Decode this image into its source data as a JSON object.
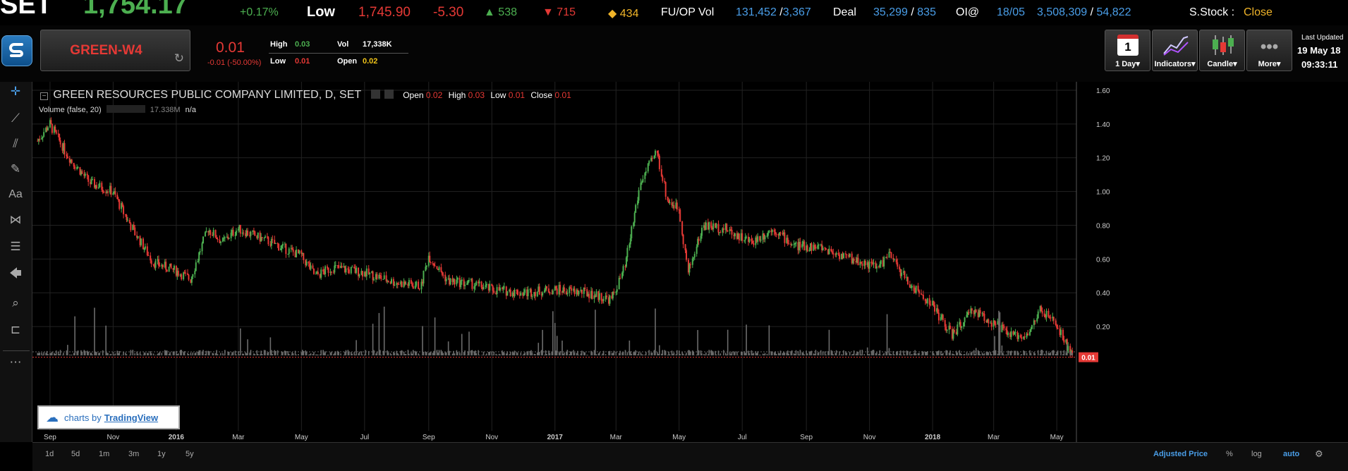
{
  "ticker": {
    "index_name": "SET",
    "index_value": "1,754.17",
    "change_pct": "+0.17%",
    "low_label": "Low",
    "low_value": "1,745.90",
    "low_change": "-5.30",
    "up_count": "538",
    "down_count": "715",
    "unch_count": "434",
    "fuop_label": "FU/OP Vol",
    "fuop_value_a": "131,452",
    "fuop_value_b": "3,367",
    "deal_label": "Deal",
    "deal_a": "35,299",
    "deal_b": "835",
    "oi_label": "OI@",
    "oi_date": "18/05",
    "oi_a": "3,508,309",
    "oi_b": "54,822",
    "sstock_label": "S.Stock :",
    "sstock_value": "Close"
  },
  "header": {
    "symbol": "GREEN-W4",
    "last_price": "0.01",
    "price_change": "-0.01 (-50.00%)",
    "high_label": "High",
    "high_value": "0.03",
    "low_label": "Low",
    "low_value": "0.01",
    "vol_label": "Vol",
    "vol_value": "17,338K",
    "open_label": "Open",
    "open_value": "0.02",
    "interval_icon_text": "1",
    "interval_label": "1 Day▾",
    "indicators_label": "Indicators▾",
    "candle_label": "Candle▾",
    "more_label": "More▾",
    "last_updated_label": "Last Updated",
    "last_updated_date": "19 May 18",
    "last_updated_time": "09:33:11"
  },
  "legend": {
    "title": "GREEN RESOURCES PUBLIC COMPANY LIMITED, D, SET",
    "open_label": "Open",
    "open_value": "0.02",
    "high_label": "High",
    "high_value": "0.03",
    "low_label": "Low",
    "low_value": "0.01",
    "close_label": "Close",
    "close_value": "0.01",
    "volume_label": "Volume (false, 20)",
    "volume_value": "17.338M",
    "volume_na": "n/a"
  },
  "footer": {
    "ranges": [
      "1d",
      "5d",
      "1m",
      "3m",
      "1y",
      "5y"
    ],
    "adjusted_label": "Adjusted Price",
    "pct_label": "%",
    "log_label": "log",
    "auto_label": "auto"
  },
  "watermark": {
    "prefix": "charts by",
    "brand": "TradingView"
  },
  "colors": {
    "up": "#4caf50",
    "down": "#e53935",
    "accent": "#2196f3",
    "volume": "#6b6b6b"
  },
  "chart_data": {
    "type": "candlestick",
    "y_ticks": [
      "1.60",
      "1.40",
      "1.20",
      "1.00",
      "0.80",
      "0.60",
      "0.40",
      "0.20"
    ],
    "x_ticks": [
      "Sep",
      "Nov",
      "2016",
      "Mar",
      "May",
      "Jul",
      "Sep",
      "Nov",
      "2017",
      "Mar",
      "May",
      "Jul",
      "Sep",
      "Nov",
      "2018",
      "Mar",
      "May"
    ],
    "ylim": [
      0,
      1.65
    ],
    "last_price_label": "0.01",
    "price_path": [
      {
        "x": "2015-08-20",
        "y": 1.3
      },
      {
        "x": "2015-09-01",
        "y": 1.4
      },
      {
        "x": "2015-09-20",
        "y": 1.2
      },
      {
        "x": "2015-10-10",
        "y": 1.05
      },
      {
        "x": "2015-11-01",
        "y": 1.0
      },
      {
        "x": "2015-11-20",
        "y": 0.78
      },
      {
        "x": "2015-12-10",
        "y": 0.58
      },
      {
        "x": "2016-01-01",
        "y": 0.53
      },
      {
        "x": "2016-01-15",
        "y": 0.48
      },
      {
        "x": "2016-02-01",
        "y": 0.78
      },
      {
        "x": "2016-02-15",
        "y": 0.7
      },
      {
        "x": "2016-03-01",
        "y": 0.78
      },
      {
        "x": "2016-04-01",
        "y": 0.7
      },
      {
        "x": "2016-05-01",
        "y": 0.62
      },
      {
        "x": "2016-05-15",
        "y": 0.5
      },
      {
        "x": "2016-06-01",
        "y": 0.55
      },
      {
        "x": "2016-07-01",
        "y": 0.52
      },
      {
        "x": "2016-08-01",
        "y": 0.46
      },
      {
        "x": "2016-08-25",
        "y": 0.44
      },
      {
        "x": "2016-09-01",
        "y": 0.62
      },
      {
        "x": "2016-09-20",
        "y": 0.47
      },
      {
        "x": "2016-10-15",
        "y": 0.45
      },
      {
        "x": "2016-11-01",
        "y": 0.42
      },
      {
        "x": "2016-12-01",
        "y": 0.4
      },
      {
        "x": "2017-01-01",
        "y": 0.42
      },
      {
        "x": "2017-02-01",
        "y": 0.4
      },
      {
        "x": "2017-02-25",
        "y": 0.36
      },
      {
        "x": "2017-03-10",
        "y": 0.55
      },
      {
        "x": "2017-03-25",
        "y": 1.05
      },
      {
        "x": "2017-04-10",
        "y": 1.24
      },
      {
        "x": "2017-04-20",
        "y": 0.95
      },
      {
        "x": "2017-05-01",
        "y": 0.9
      },
      {
        "x": "2017-05-10",
        "y": 0.52
      },
      {
        "x": "2017-05-25",
        "y": 0.8
      },
      {
        "x": "2017-06-15",
        "y": 0.78
      },
      {
        "x": "2017-07-10",
        "y": 0.7
      },
      {
        "x": "2017-08-01",
        "y": 0.78
      },
      {
        "x": "2017-08-20",
        "y": 0.68
      },
      {
        "x": "2017-09-15",
        "y": 0.67
      },
      {
        "x": "2017-10-15",
        "y": 0.6
      },
      {
        "x": "2017-11-10",
        "y": 0.55
      },
      {
        "x": "2017-11-20",
        "y": 0.63
      },
      {
        "x": "2017-12-10",
        "y": 0.45
      },
      {
        "x": "2018-01-01",
        "y": 0.33
      },
      {
        "x": "2018-01-20",
        "y": 0.15
      },
      {
        "x": "2018-02-10",
        "y": 0.3
      },
      {
        "x": "2018-03-01",
        "y": 0.22
      },
      {
        "x": "2018-03-20",
        "y": 0.14
      },
      {
        "x": "2018-04-05",
        "y": 0.16
      },
      {
        "x": "2018-04-15",
        "y": 0.3
      },
      {
        "x": "2018-04-30",
        "y": 0.22
      },
      {
        "x": "2018-05-10",
        "y": 0.1
      },
      {
        "x": "2018-05-18",
        "y": 0.01
      }
    ]
  }
}
